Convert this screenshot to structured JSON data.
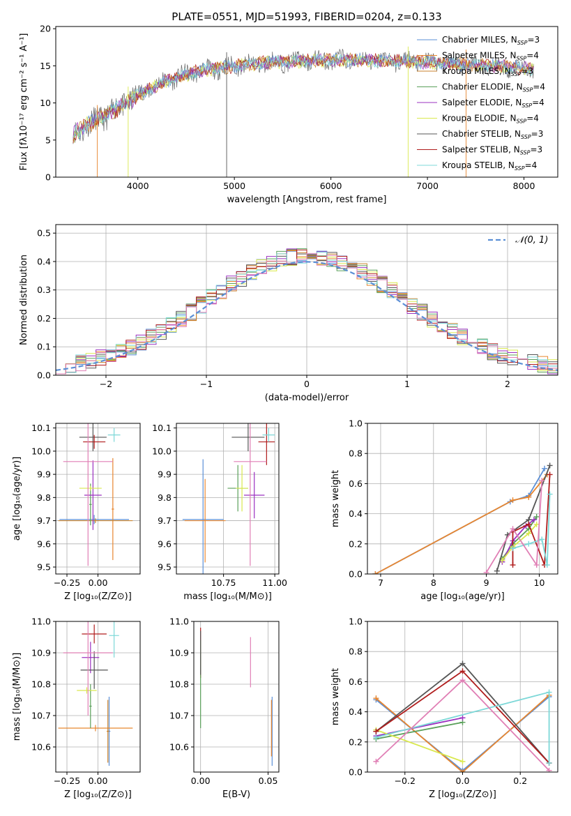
{
  "figure": {
    "title": "PLATE=0551, MJD=51993, FIBERID=0204, z=0.133"
  },
  "colors": {
    "Chabrier MILES": "#5b8fd6",
    "Salpeter MILES": "#e8862f",
    "Kroupa MILES": "#c9822c",
    "Chabrier ELODIE": "#5aa05a",
    "Salpeter ELODIE": "#9b30c0",
    "Kroupa ELODIE": "#d9e84d",
    "Chabrier STELIB": "#555555",
    "Salpeter STELIB": "#b01c1c",
    "Kroupa STELIB": "#7dd8d8",
    "Kroupa STELIB (pink series)": "#e07fb5",
    "normal_curve": "#5b8fd6"
  },
  "chart_data": [
    {
      "id": "spectrum",
      "type": "line",
      "xlabel": "wavelength [Angstrom, rest frame]",
      "ylabel": "Flux [fλ10⁻¹⁷ erg cm⁻² s⁻¹ A⁻¹]",
      "xlim": [
        3150,
        8350
      ],
      "ylim": [
        0,
        20.3
      ],
      "xticks": [
        4000,
        5000,
        6000,
        7000,
        8000
      ],
      "yticks": [
        0,
        5,
        10,
        15,
        20
      ],
      "legend_position": "top-right",
      "legend": [
        "Chabrier MILES, N$_{SSP}$=3",
        "Salpeter MILES, N$_{SSP}$=4",
        "Kroupa MILES, N$_{SSP}$=3",
        "Chabrier ELODIE, N$_{SSP}$=4",
        "Salpeter ELODIE, N$_{SSP}$=4",
        "Kroupa ELODIE, N$_{SSP}$=4",
        "Chabrier STELIB, N$_{SSP}$=3",
        "Salpeter STELIB, N$_{SSP}$=3",
        "Kroupa STELIB, N$_{SSP}$=4"
      ],
      "continuum": {
        "x": [
          3330,
          3500,
          3700,
          3900,
          4100,
          4300,
          4600,
          5000,
          5400,
          5800,
          6200,
          6600,
          7000,
          7400,
          7800,
          8100
        ],
        "y": [
          5.8,
          7.2,
          8.5,
          10.2,
          11.8,
          13.0,
          14.2,
          15.0,
          15.5,
          15.7,
          15.8,
          15.7,
          15.5,
          15.2,
          14.9,
          14.6
        ]
      },
      "spikes": [
        {
          "x": 3580,
          "low": 0
        },
        {
          "x": 3900,
          "low": 0
        },
        {
          "x": 4920,
          "low": 0
        },
        {
          "x": 6800,
          "low": 0
        },
        {
          "x": 7400,
          "low": 0
        }
      ]
    },
    {
      "id": "residuals",
      "type": "histogram",
      "xlabel": "(data-model)/error",
      "ylabel": "Normed distribution",
      "xlim": [
        -2.5,
        2.5
      ],
      "ylim": [
        0,
        0.53
      ],
      "xticks": [
        -2,
        -1,
        0,
        1,
        2
      ],
      "yticks": [
        0.0,
        0.1,
        0.2,
        0.3,
        0.4,
        0.5
      ],
      "grid": true,
      "legend_position": "top-right",
      "legend": [
        "$\\mathcal{N}(0,1)$"
      ],
      "bin_width": 0.1,
      "envelope": {
        "bins": 50,
        "x_start": -2.5,
        "sigma": 1.0,
        "peak": 0.41
      }
    },
    {
      "id": "age_vs_Z",
      "type": "errorbar",
      "xlabel": "Z [log₁₀(Z/Z⊙)]",
      "ylabel": "age  [log₁₀(age/yr)]",
      "xlim": [
        -0.34,
        0.34
      ],
      "ylim": [
        9.47,
        10.12
      ],
      "xticks": [
        -0.25,
        0.0
      ],
      "xticklabels": [
        "−0.25",
        "0.00"
      ],
      "yticks": [
        9.5,
        9.6,
        9.7,
        9.8,
        9.9,
        10.0,
        10.1
      ],
      "grid": true,
      "points": [
        {
          "series": "Chabrier MILES",
          "x": -0.03,
          "xerr": 0.28,
          "y": 9.705,
          "yerr": 0.02
        },
        {
          "series": "Salpeter MILES",
          "x": 0.12,
          "xerr": 0.01,
          "y": 9.75,
          "yerr": 0.22
        },
        {
          "series": "Kroupa MILES",
          "x": -0.02,
          "xerr": 0.3,
          "y": 9.7,
          "yerr": 0.01
        },
        {
          "series": "Chabrier ELODIE",
          "x": -0.06,
          "xerr": 0.01,
          "y": 9.77,
          "yerr": 0.09
        },
        {
          "series": "Salpeter ELODIE",
          "x": -0.04,
          "xerr": 0.07,
          "y": 9.81,
          "yerr": 0.15
        },
        {
          "series": "Kroupa ELODIE",
          "x": -0.06,
          "xerr": 0.09,
          "y": 9.84,
          "yerr": 0.01
        },
        {
          "series": "Chabrier STELIB",
          "x": -0.04,
          "xerr": 0.11,
          "y": 10.06,
          "yerr": 0.06
        },
        {
          "series": "Salpeter STELIB",
          "x": -0.03,
          "xerr": 0.09,
          "y": 10.04,
          "yerr": 0.03
        },
        {
          "series": "Kroupa STELIB",
          "x": 0.13,
          "xerr": 0.05,
          "y": 10.07,
          "yerr": 0.03
        },
        {
          "series": "Kroupa STELIB (pink series)",
          "x": -0.08,
          "xerr": 0.2,
          "y": 9.955,
          "yerr": 0.45
        }
      ]
    },
    {
      "id": "age_vs_mass",
      "type": "errorbar",
      "xlabel": "mass [log₁₀(M/M⊙)]",
      "ylabel": "",
      "xlim": [
        10.52,
        11.02
      ],
      "ylim": [
        9.47,
        10.12
      ],
      "xticks": [
        10.75,
        11.0
      ],
      "xticklabels": [
        "10.75",
        "11.00"
      ],
      "yticks": [
        9.5,
        9.6,
        9.7,
        9.8,
        9.9,
        10.0,
        10.1
      ],
      "grid": true,
      "points": [
        {
          "series": "Chabrier MILES",
          "x": 10.65,
          "xerr": 0.1,
          "y": 9.705,
          "yerr": 0.26
        },
        {
          "series": "Salpeter MILES",
          "x": 10.66,
          "xerr": 0.1,
          "y": 9.7,
          "yerr": 0.18
        },
        {
          "series": "Chabrier ELODIE",
          "x": 10.82,
          "xerr": 0.05,
          "y": 9.84,
          "yerr": 0.1
        },
        {
          "series": "Kroupa ELODIE",
          "x": 10.84,
          "xerr": 0.03,
          "y": 9.84,
          "yerr": 0.1
        },
        {
          "series": "Salpeter ELODIE",
          "x": 10.9,
          "xerr": 0.05,
          "y": 9.81,
          "yerr": 0.1
        },
        {
          "series": "Chabrier STELIB",
          "x": 10.87,
          "xerr": 0.08,
          "y": 10.06,
          "yerr": 0.06
        },
        {
          "series": "Salpeter STELIB",
          "x": 10.96,
          "xerr": 0.04,
          "y": 10.04,
          "yerr": 0.1
        },
        {
          "series": "Kroupa STELIB",
          "x": 10.97,
          "xerr": 0.03,
          "y": 10.07,
          "yerr": 0.03
        },
        {
          "series": "Kroupa STELIB (pink series)",
          "x": 10.88,
          "xerr": 0.08,
          "y": 9.955,
          "yerr": 0.45
        }
      ]
    },
    {
      "id": "weight_vs_age",
      "type": "line",
      "xlabel": "age  [log₁₀(age/yr)]",
      "ylabel": "mass weight",
      "xlim": [
        6.75,
        10.35
      ],
      "ylim": [
        0,
        1
      ],
      "xticks": [
        7,
        8,
        9,
        10
      ],
      "yticks": [
        0.0,
        0.2,
        0.4,
        0.6,
        0.8,
        1.0
      ],
      "grid": true,
      "series": [
        {
          "name": "Chabrier MILES",
          "x": [
            6.9,
            9.45,
            9.8,
            10.1
          ],
          "y": [
            0.0,
            0.48,
            0.52,
            0.7
          ]
        },
        {
          "name": "Salpeter MILES",
          "x": [
            6.9,
            9.5,
            9.8,
            10.15
          ],
          "y": [
            0.0,
            0.49,
            0.51,
            0.66
          ]
        },
        {
          "name": "Chabrier ELODIE",
          "x": [
            9.3,
            9.5,
            9.8,
            9.95
          ],
          "y": [
            0.1,
            0.2,
            0.3,
            0.38
          ]
        },
        {
          "name": "Salpeter ELODIE",
          "x": [
            9.3,
            9.5,
            9.75,
            9.9
          ],
          "y": [
            0.08,
            0.22,
            0.32,
            0.36
          ]
        },
        {
          "name": "Kroupa ELODIE",
          "x": [
            9.3,
            9.5,
            9.8,
            9.95
          ],
          "y": [
            0.09,
            0.18,
            0.27,
            0.33
          ]
        },
        {
          "name": "Chabrier STELIB",
          "x": [
            9.2,
            9.4,
            9.8,
            10.2
          ],
          "y": [
            0.02,
            0.26,
            0.36,
            0.72
          ]
        },
        {
          "name": "Salpeter STELIB",
          "x": [
            9.5,
            9.5,
            9.8,
            10.1,
            10.2
          ],
          "y": [
            0.06,
            0.28,
            0.33,
            0.06,
            0.66
          ]
        },
        {
          "name": "Kroupa STELIB",
          "x": [
            9.5,
            9.8,
            10.05,
            10.15,
            10.2
          ],
          "y": [
            0.17,
            0.2,
            0.23,
            0.06,
            0.53
          ]
        },
        {
          "name": "Kroupa STELIB (pink series)",
          "x": [
            9.0,
            9.5,
            9.95,
            10.05
          ],
          "y": [
            0.01,
            0.3,
            0.06,
            0.62
          ]
        }
      ]
    },
    {
      "id": "mass_vs_Z",
      "type": "errorbar",
      "xlabel": "Z [log₁₀(Z/Z⊙)]",
      "ylabel": "mass [log₁₀(M/M⊙)]",
      "xlim": [
        -0.34,
        0.34
      ],
      "ylim": [
        10.52,
        11.0
      ],
      "xticks": [
        -0.25,
        0.0
      ],
      "xticklabels": [
        "−0.25",
        "0.00"
      ],
      "yticks": [
        10.6,
        10.7,
        10.8,
        10.9,
        11.0
      ],
      "grid": true,
      "points": [
        {
          "series": "Chabrier MILES",
          "x": 0.09,
          "xerr": 0.01,
          "y": 10.65,
          "yerr": 0.11
        },
        {
          "series": "Salpeter MILES",
          "x": -0.02,
          "xerr": 0.3,
          "y": 10.66,
          "yerr": 0.01
        },
        {
          "series": "Kroupa MILES",
          "x": 0.08,
          "xerr": 0.01,
          "y": 10.65,
          "yerr": 0.1
        },
        {
          "series": "Chabrier ELODIE",
          "x": -0.06,
          "xerr": 0.01,
          "y": 10.73,
          "yerr": 0.07
        },
        {
          "series": "Kroupa ELODIE",
          "x": -0.09,
          "xerr": 0.08,
          "y": 10.78,
          "yerr": 0.01
        },
        {
          "series": "Salpeter ELODIE",
          "x": -0.06,
          "xerr": 0.07,
          "y": 10.885,
          "yerr": 0.05
        },
        {
          "series": "Chabrier STELIB",
          "x": -0.03,
          "xerr": 0.11,
          "y": 10.845,
          "yerr": 0.06
        },
        {
          "series": "Salpeter STELIB",
          "x": -0.03,
          "xerr": 0.1,
          "y": 10.96,
          "yerr": 0.03
        },
        {
          "series": "Kroupa STELIB",
          "x": 0.13,
          "xerr": 0.04,
          "y": 10.955,
          "yerr": 0.07
        },
        {
          "series": "Kroupa STELIB (pink series)",
          "x": -0.08,
          "xerr": 0.2,
          "y": 10.9,
          "yerr": 0.2
        }
      ]
    },
    {
      "id": "mass_vs_ebv",
      "type": "errorbar",
      "xlabel": "E(B-V)",
      "ylabel": "",
      "xlim": [
        -0.005,
        0.058
      ],
      "ylim": [
        10.52,
        11.0
      ],
      "xticks": [
        0.0,
        0.05
      ],
      "xticklabels": [
        "0.00",
        "0.05"
      ],
      "yticks": [
        10.6,
        10.7,
        10.8,
        10.9,
        11.0
      ],
      "grid": true,
      "points": [
        {
          "series": "Chabrier MILES",
          "x": 0.053,
          "xerr": 0,
          "y": 10.65,
          "yerr": 0.11
        },
        {
          "series": "Salpeter MILES",
          "x": 0.0525,
          "xerr": 0,
          "y": 10.66,
          "yerr": 0.09
        },
        {
          "series": "Kroupa STELIB (pink series)",
          "x": 0.037,
          "xerr": 0,
          "y": 10.87,
          "yerr": 0.08
        },
        {
          "series": "Salpeter STELIB",
          "x": 0.0,
          "xerr": 0,
          "y": 10.9,
          "yerr": 0.08
        },
        {
          "series": "Chabrier ELODIE",
          "x": 0.0,
          "xerr": 0,
          "y": 10.8,
          "yerr": 0.14
        },
        {
          "series": "Chabrier STELIB",
          "x": 0.0,
          "xerr": 0,
          "y": 10.9,
          "yerr": 0.07
        }
      ]
    },
    {
      "id": "weight_vs_Z",
      "type": "line",
      "xlabel": "Z [log₁₀(Z/Z⊙)]",
      "ylabel": "mass weight",
      "xlim": [
        -0.33,
        0.33
      ],
      "ylim": [
        0,
        1
      ],
      "xticks": [
        -0.2,
        0.0,
        0.2
      ],
      "xticklabels": [
        "−0.2",
        "0.0",
        "0.2"
      ],
      "yticks": [
        0.0,
        0.2,
        0.4,
        0.6,
        0.8,
        1.0
      ],
      "grid": true,
      "series": [
        {
          "name": "Chabrier MILES",
          "x": [
            -0.3,
            0.0,
            0.3
          ],
          "y": [
            0.48,
            0.01,
            0.5
          ]
        },
        {
          "name": "Salpeter MILES",
          "x": [
            -0.3,
            0.0,
            0.3
          ],
          "y": [
            0.49,
            0.0,
            0.51
          ]
        },
        {
          "name": "Chabrier ELODIE",
          "x": [
            -0.3,
            0.0
          ],
          "y": [
            0.22,
            0.33
          ]
        },
        {
          "name": "Salpeter ELODIE",
          "x": [
            -0.3,
            0.0
          ],
          "y": [
            0.24,
            0.36
          ]
        },
        {
          "name": "Kroupa ELODIE",
          "x": [
            -0.3,
            0.0
          ],
          "y": [
            0.28,
            0.07
          ]
        },
        {
          "name": "Chabrier STELIB",
          "x": [
            -0.3,
            0.0,
            0.3
          ],
          "y": [
            0.27,
            0.72,
            0.06
          ]
        },
        {
          "name": "Salpeter STELIB",
          "x": [
            -0.3,
            0.0,
            0.3
          ],
          "y": [
            0.27,
            0.67,
            0.06
          ]
        },
        {
          "name": "Kroupa STELIB",
          "x": [
            -0.3,
            0.3,
            0.3
          ],
          "y": [
            0.23,
            0.53,
            0.06
          ]
        },
        {
          "name": "Kroupa STELIB (pink series)",
          "x": [
            -0.3,
            0.0,
            0.3
          ],
          "y": [
            0.07,
            0.61,
            0.01
          ]
        }
      ]
    }
  ]
}
